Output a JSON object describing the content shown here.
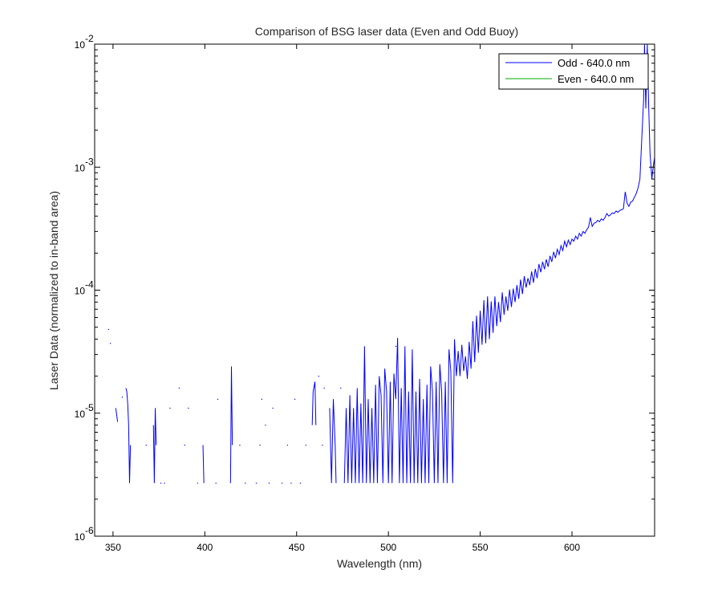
{
  "chart_data": {
    "type": "line",
    "title": "Comparison of BSG laser data (Even and Odd Buoy)",
    "xlabel": "Wavelength (nm)",
    "ylabel": "Laser Data (normalized to in-band area)",
    "xlim": [
      340,
      645
    ],
    "ylim": [
      1e-06,
      0.01
    ],
    "yscale": "log",
    "x_ticks": [
      {
        "value": 350,
        "label": "350"
      },
      {
        "value": 400,
        "label": "400"
      },
      {
        "value": 450,
        "label": "450"
      },
      {
        "value": 500,
        "label": "500"
      },
      {
        "value": 550,
        "label": "550"
      },
      {
        "value": 600,
        "label": "600"
      }
    ],
    "y_ticks": [
      {
        "value": 1e-06,
        "base": "10",
        "exp": "-6"
      },
      {
        "value": 1e-05,
        "base": "10",
        "exp": "-5"
      },
      {
        "value": 0.0001,
        "base": "10",
        "exp": "-4"
      },
      {
        "value": 0.001,
        "base": "10",
        "exp": "-3"
      },
      {
        "value": 0.01,
        "base": "10",
        "exp": "-2"
      }
    ],
    "grid": false,
    "legend_position": "top-right",
    "series": [
      {
        "name": "Odd - 640.0 nm",
        "color": "#0000ff",
        "segments": [
          [
            [
              351.5,
              1.1e-05
            ],
            [
              352.5,
              8.5e-06
            ]
          ],
          [
            [
              357,
              1.6e-05
            ],
            [
              357.5,
              1.5e-05
            ],
            [
              358,
              1.2e-05
            ],
            [
              358.5,
              8e-06
            ],
            [
              359,
              2.7e-06
            ],
            [
              359.5,
              5.5e-06
            ]
          ],
          [
            [
              372,
              8e-06
            ],
            [
              372.5,
              2.7e-06
            ],
            [
              373,
              1.1e-05
            ],
            [
              373.5,
              5.5e-06
            ]
          ],
          [
            [
              399,
              5.5e-06
            ],
            [
              399.5,
              2.7e-06
            ]
          ],
          [
            [
              414,
              2.7e-06
            ],
            [
              414.5,
              2.4e-05
            ],
            [
              415,
              5.5e-06
            ]
          ],
          [
            [
              458.5,
              8e-06
            ],
            [
              459,
              1.5e-05
            ],
            [
              460,
              1.8e-05
            ],
            [
              460.5,
              8e-06
            ]
          ],
          [
            [
              468,
              1.1e-05
            ],
            [
              469,
              2.7e-06
            ],
            [
              470,
              1.3e-05
            ],
            [
              471,
              5.5e-06
            ],
            [
              471.5,
              2.7e-06
            ]
          ],
          [
            [
              476,
              2.7e-06
            ],
            [
              477,
              1.1e-05
            ],
            [
              478,
              2.7e-06
            ],
            [
              479,
              1.4e-05
            ],
            [
              480,
              2.7e-06
            ],
            [
              481,
              1.1e-05
            ],
            [
              482,
              2.7e-06
            ],
            [
              483,
              1.6e-05
            ],
            [
              484,
              2.7e-06
            ],
            [
              485,
              1.2e-05
            ],
            [
              486,
              2.7e-06
            ],
            [
              487,
              3.5e-05
            ],
            [
              488,
              2.7e-06
            ],
            [
              489,
              1.3e-05
            ],
            [
              490,
              2.7e-06
            ],
            [
              491,
              1.1e-05
            ],
            [
              492,
              2.7e-06
            ],
            [
              493,
              1.7e-05
            ],
            [
              494,
              2.7e-06
            ],
            [
              495,
              2e-05
            ],
            [
              496,
              1.4e-05
            ],
            [
              497,
              2.7e-06
            ],
            [
              498,
              2.3e-05
            ],
            [
              499,
              1.5e-05
            ],
            [
              500,
              2.7e-06
            ],
            [
              501,
              1.8e-05
            ],
            [
              502,
              2.7e-06
            ],
            [
              503,
              2.1e-05
            ],
            [
              504,
              1.3e-05
            ],
            [
              505,
              4.1e-05
            ],
            [
              506,
              2.7e-06
            ],
            [
              507,
              1.6e-05
            ],
            [
              508,
              2.7e-06
            ],
            [
              509,
              3.5e-05
            ],
            [
              510,
              2.7e-06
            ],
            [
              511,
              1.5e-05
            ],
            [
              512,
              2.7e-06
            ],
            [
              513,
              3.3e-05
            ],
            [
              514,
              2.7e-06
            ],
            [
              515,
              1.5e-05
            ],
            [
              516,
              2.7e-06
            ],
            [
              517,
              1.9e-05
            ],
            [
              518,
              2.7e-06
            ],
            [
              519,
              1.3e-05
            ],
            [
              520,
              2.7e-06
            ],
            [
              521,
              1.7e-05
            ],
            [
              522,
              2.7e-06
            ],
            [
              523,
              2.4e-05
            ],
            [
              524,
              1.5e-05
            ],
            [
              525,
              2.7e-06
            ],
            [
              526,
              1.8e-05
            ],
            [
              527,
              2.7e-06
            ],
            [
              528,
              2.5e-05
            ],
            [
              529,
              1.5e-05
            ],
            [
              530,
              2.7e-06
            ],
            [
              531,
              1.8e-05
            ],
            [
              532,
              2.7e-06
            ],
            [
              533,
              3.3e-05
            ],
            [
              534,
              2.2e-05
            ],
            [
              535,
              2.7e-06
            ],
            [
              536,
              4e-05
            ],
            [
              537,
              2e-05
            ],
            [
              538,
              3.2e-05
            ],
            [
              539,
              2e-05
            ],
            [
              540,
              3.6e-05
            ],
            [
              541,
              2.2e-05
            ],
            [
              542,
              2.9e-05
            ],
            [
              543,
              1.9e-05
            ],
            [
              544,
              3.8e-05
            ],
            [
              545,
              2.3e-05
            ],
            [
              546,
              5.6e-05
            ],
            [
              547,
              2.6e-05
            ],
            [
              548,
              6.2e-05
            ],
            [
              549,
              3.1e-05
            ],
            [
              550,
              6.8e-05
            ],
            [
              551,
              3.6e-05
            ],
            [
              552,
              8.3e-05
            ],
            [
              553,
              3.7e-05
            ],
            [
              554,
              8.9e-05
            ],
            [
              555,
              4e-05
            ],
            [
              556,
              8.1e-05
            ],
            [
              557,
              4.5e-05
            ],
            [
              558,
              8.9e-05
            ],
            [
              559,
              5.1e-05
            ],
            [
              560,
              8e-05
            ],
            [
              561,
              5.5e-05
            ],
            [
              562,
              9.6e-05
            ],
            [
              563,
              6.3e-05
            ],
            [
              564,
              8.9e-05
            ],
            [
              565,
              6.8e-05
            ],
            [
              566,
              0.000101
            ],
            [
              567,
              7.3e-05
            ],
            [
              568,
              0.000103
            ],
            [
              569,
              8e-05
            ],
            [
              570,
              0.00011
            ],
            [
              571,
              8.5e-05
            ],
            [
              572,
              0.000122
            ],
            [
              573,
              9.3e-05
            ],
            [
              574,
              0.00013
            ],
            [
              575,
              0.000105
            ],
            [
              576,
              0.000125
            ],
            [
              577,
              0.00011
            ],
            [
              578,
              0.000142
            ],
            [
              579,
              0.000115
            ],
            [
              580,
              0.000149
            ],
            [
              581,
              0.000125
            ],
            [
              582,
              0.000163
            ],
            [
              583,
              0.00014
            ],
            [
              584,
              0.00017
            ],
            [
              585,
              0.000148
            ],
            [
              586,
              0.000178
            ],
            [
              587,
              0.000155
            ],
            [
              588,
              0.00019
            ],
            [
              589,
              0.00017
            ],
            [
              590,
              0.000205
            ],
            [
              591,
              0.000182
            ],
            [
              592,
              0.000215
            ],
            [
              593,
              0.000195
            ],
            [
              594,
              0.00023
            ],
            [
              595,
              0.00021
            ],
            [
              596,
              0.00025
            ],
            [
              597,
              0.000225
            ],
            [
              598,
              0.000255
            ],
            [
              599,
              0.000235
            ],
            [
              600,
              0.00026
            ],
            [
              601,
              0.00025
            ],
            [
              602,
              0.000275
            ],
            [
              603,
              0.00026
            ],
            [
              604,
              0.00029
            ],
            [
              605,
              0.000275
            ],
            [
              606,
              0.0003
            ],
            [
              607,
              0.00029
            ],
            [
              608,
              0.00031
            ],
            [
              609,
              0.000325
            ],
            [
              610,
              0.00039
            ],
            [
              611,
              0.00033
            ],
            [
              612,
              0.00035
            ],
            [
              613,
              0.000355
            ],
            [
              614,
              0.00037
            ],
            [
              615,
              0.00036
            ],
            [
              616,
              0.00038
            ],
            [
              617,
              0.00037
            ],
            [
              618,
              0.00039
            ],
            [
              619,
              0.00042
            ],
            [
              620,
              0.0004
            ],
            [
              621,
              0.00041
            ],
            [
              622,
              0.000425
            ],
            [
              623,
              0.00042
            ],
            [
              624,
              0.00044
            ],
            [
              625,
              0.00043
            ],
            [
              626,
              0.000445
            ],
            [
              627,
              0.00045
            ],
            [
              628,
              0.00046
            ],
            [
              629,
              0.00063
            ],
            [
              630,
              0.00051
            ],
            [
              631,
              0.00048
            ],
            [
              632,
              0.00052
            ],
            [
              633,
              0.00053
            ],
            [
              634,
              0.00057
            ],
            [
              635,
              0.00061
            ],
            [
              636,
              0.00068
            ],
            [
              637,
              0.0008
            ],
            [
              638,
              0.0017
            ],
            [
              639,
              0.0035
            ],
            [
              639.5,
              0.01
            ],
            [
              640.2,
              0.003
            ],
            [
              641,
              0.01
            ],
            [
              641.8,
              0.003
            ],
            [
              642.5,
              0.0013
            ],
            [
              643.5,
              0.0008
            ],
            [
              644.2,
              0.001
            ],
            [
              645,
              0.0012
            ]
          ]
        ],
        "isolated_points": [
          [
            347.5,
            4.8e-05
          ],
          [
            348.5,
            3.7e-05
          ],
          [
            355,
            1.35e-05
          ],
          [
            368,
            5.5e-06
          ],
          [
            376,
            2.7e-06
          ],
          [
            378,
            2.7e-06
          ],
          [
            381,
            1.1e-05
          ],
          [
            386,
            1.6e-05
          ],
          [
            389,
            5.5e-06
          ],
          [
            391,
            1.1e-05
          ],
          [
            396,
            2.7e-06
          ],
          [
            406,
            2.7e-06
          ],
          [
            407,
            1.3e-05
          ],
          [
            419,
            5.5e-06
          ],
          [
            422,
            2.7e-06
          ],
          [
            428,
            2.7e-06
          ],
          [
            430,
            5.5e-06
          ],
          [
            431,
            1.3e-05
          ],
          [
            433,
            8e-06
          ],
          [
            435,
            2.7e-06
          ],
          [
            437,
            1.1e-05
          ],
          [
            442,
            2.7e-06
          ],
          [
            445,
            5.5e-06
          ],
          [
            447,
            2.7e-06
          ],
          [
            449,
            1.3e-05
          ],
          [
            452,
            2.7e-06
          ],
          [
            455,
            5.5e-06
          ],
          [
            462,
            2e-05
          ],
          [
            464,
            5.5e-06
          ],
          [
            465,
            1.6e-05
          ],
          [
            474,
            1.6e-05
          ],
          [
            504,
            3.5e-05
          ]
        ]
      },
      {
        "name": "Even - 640.0 nm",
        "color": "#00aa00",
        "segments": [],
        "isolated_points": []
      }
    ]
  }
}
